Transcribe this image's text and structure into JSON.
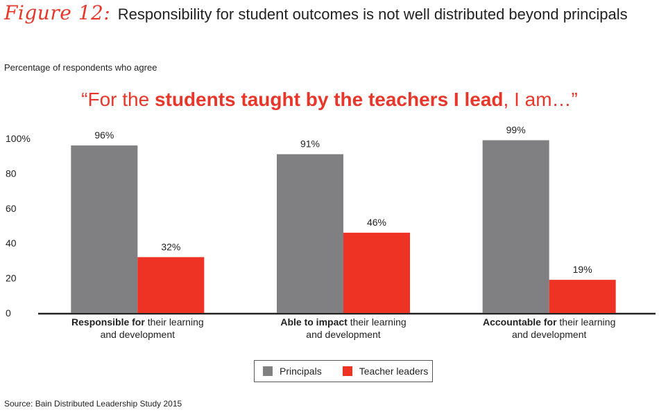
{
  "figure": {
    "label": "Figure 12:",
    "title": "Responsibility for student outcomes is not well distributed beyond principals"
  },
  "subtitle": "Percentage of respondents who agree",
  "quote": {
    "open": "“For the ",
    "bold": "students taught by the teachers I lead",
    "close": ", I am…”"
  },
  "source": "Source: Bain Distributed Leadership Study 2015",
  "colors": {
    "principals": "#808083",
    "teacher_leaders": "#ee3224",
    "accent": "#e8372a"
  },
  "chart_data": {
    "type": "bar",
    "categories": [
      {
        "bold": "Responsible for",
        "rest": " their learning",
        "line2": "and development"
      },
      {
        "bold": "Able to impact",
        "rest": " their learning",
        "line2": "and development"
      },
      {
        "bold": "Accountable for",
        "rest": " their learning",
        "line2": "and development"
      }
    ],
    "series": [
      {
        "name": "Principals",
        "values": [
          96,
          91,
          99
        ],
        "labels": [
          "96%",
          "91%",
          "99%"
        ]
      },
      {
        "name": "Teacher leaders",
        "values": [
          32,
          46,
          19
        ],
        "labels": [
          "32%",
          "46%",
          "19%"
        ]
      }
    ],
    "yticks": [
      "0",
      "20",
      "40",
      "60",
      "80",
      "100%"
    ],
    "ylim": [
      0,
      100
    ],
    "grid": false,
    "legend_position": "bottom-center"
  }
}
